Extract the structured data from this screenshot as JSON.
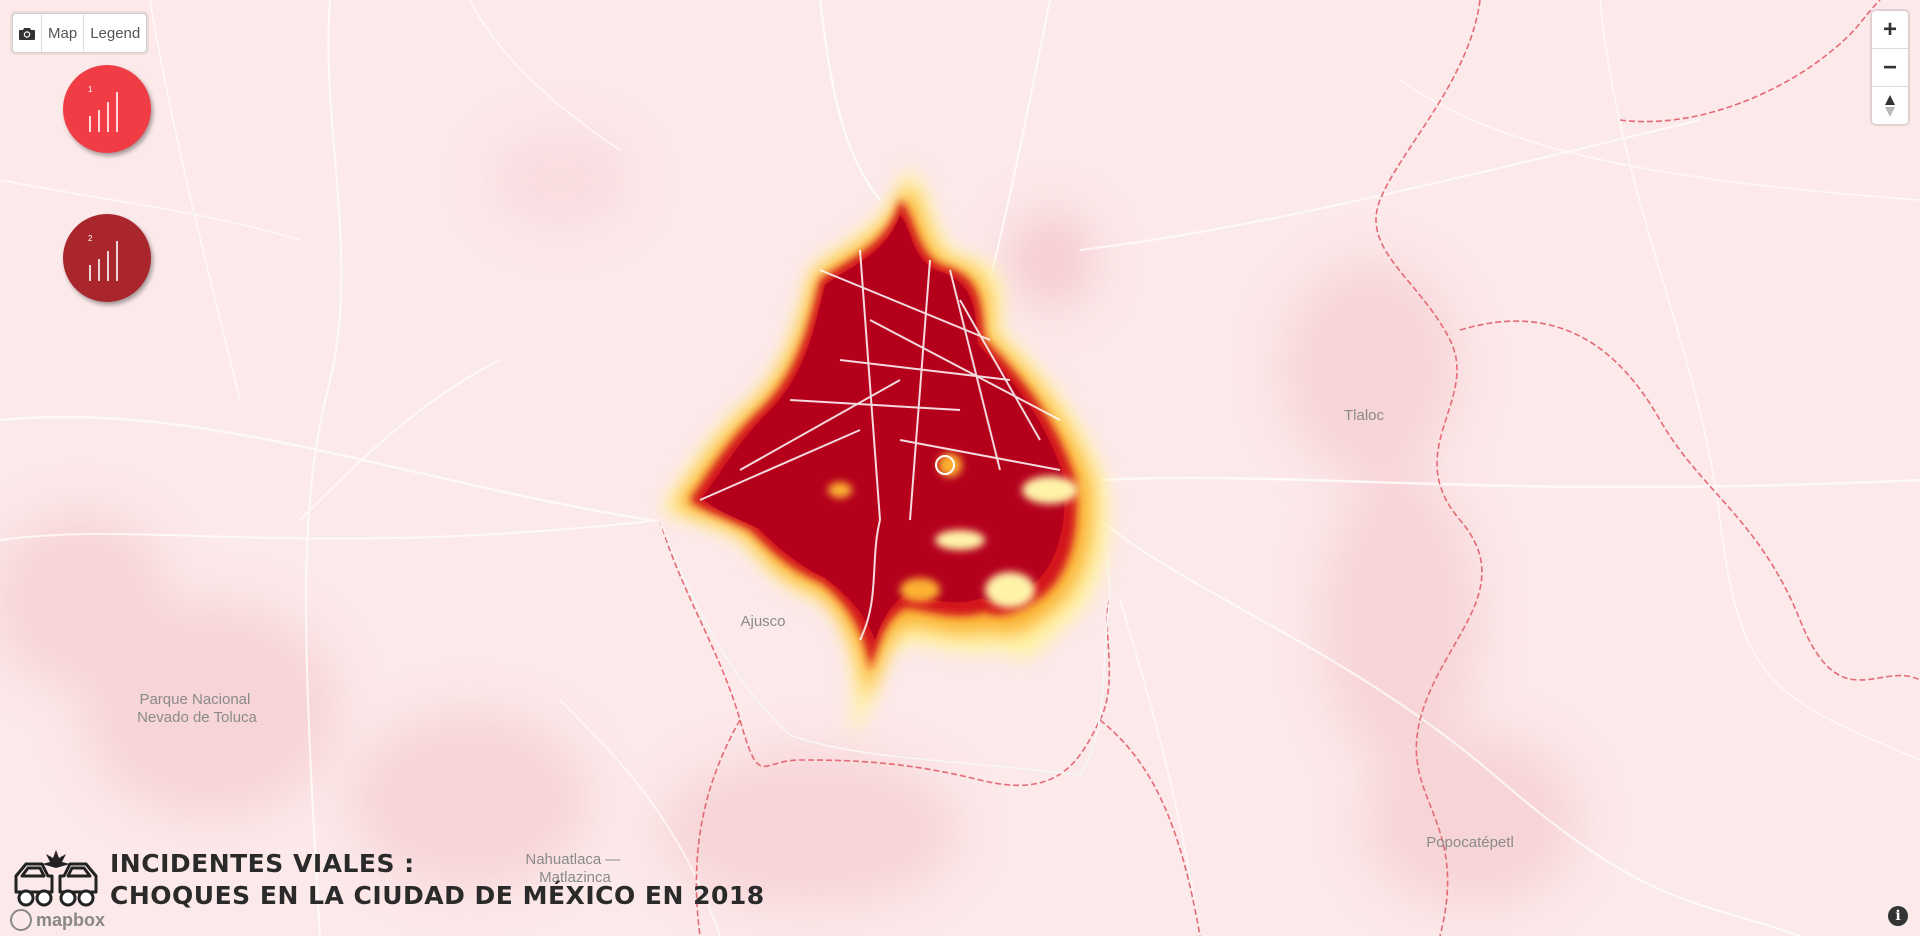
{
  "toolbar": {
    "camera_icon": "camera-icon",
    "map_label": "Map",
    "legend_label": "Legend"
  },
  "layers": [
    {
      "number": "1",
      "icon": "bar-chart-icon",
      "color": "#ef3c45"
    },
    {
      "number": "2",
      "icon": "bar-chart-icon",
      "color": "#a9262c"
    }
  ],
  "zoom": {
    "in_label": "+",
    "out_label": "−",
    "compass_icon": "compass-icon"
  },
  "map": {
    "background": "#fce9ea",
    "heat_colors": [
      "#fff6b0",
      "#fdd24a",
      "#f48a2a",
      "#d62a1f",
      "#b5001c"
    ],
    "places": [
      {
        "name": "Tlaloc"
      },
      {
        "name": "Ajusco"
      },
      {
        "name": "Parque Nacional\nNevado de Toluca"
      },
      {
        "name": "Nahuatlaca —\nMatlazinca"
      },
      {
        "name": "Popocatépetl"
      }
    ]
  },
  "title": {
    "line1": "INCIDENTES VIALES :",
    "line2": "CHOQUES EN LA CIUDAD DE MÉXICO EN 2018",
    "icon": "car-crash-icon"
  },
  "attribution": {
    "logo_text": "mapbox",
    "info_icon": "info-icon"
  }
}
